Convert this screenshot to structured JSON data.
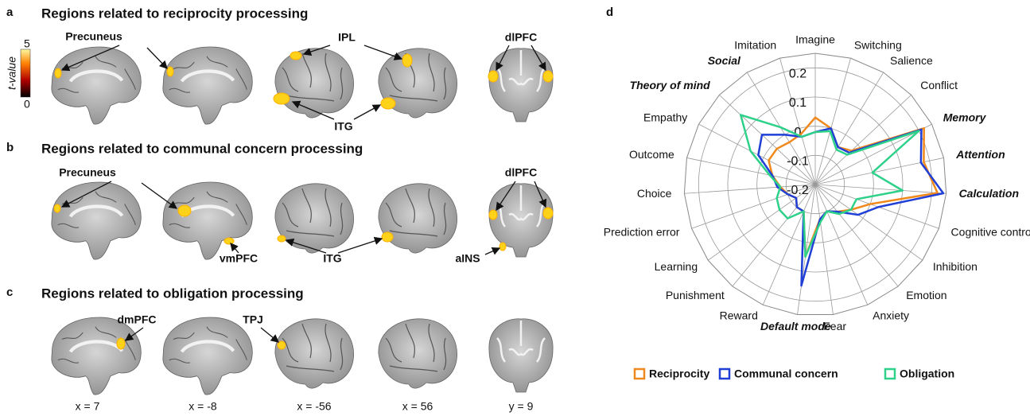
{
  "panels": [
    {
      "letter": "a",
      "title": "Regions related to reciprocity processing",
      "color": "#f0891c",
      "labels": [
        "Precuneus",
        "IPL",
        "dlPFC",
        "ITG"
      ]
    },
    {
      "letter": "b",
      "title": "Regions related to communal concern processing",
      "color": "#1f4fe0",
      "labels": [
        "Precuneus",
        "dlPFC",
        "vmPFC",
        "ITG",
        "aINS"
      ]
    },
    {
      "letter": "c",
      "title": "Regions related to obligation processing",
      "color": "#12963c",
      "labels": [
        "dmPFC",
        "TPJ"
      ]
    }
  ],
  "colorbar": {
    "label": "t-value",
    "ticks": [
      5,
      0
    ]
  },
  "slice_labels": [
    "x = 7",
    "x = -8",
    "x = -56",
    "x = 56",
    "y = 9"
  ],
  "chart_data": {
    "type": "radar",
    "letter": "d",
    "categories": [
      "Imagine",
      "Switching",
      "Salience",
      "Conflict",
      "Memory",
      "Attention",
      "Calculation",
      "Cognitive control",
      "Inhibition",
      "Emotion",
      "Anxiety",
      "Fear",
      "Default mode",
      "Reward",
      "Punishment",
      "Learning",
      "Prediction error",
      "Choice",
      "Outcome",
      "Empathy",
      "Theory of mind",
      "Social",
      "Imitation"
    ],
    "emphasis": [
      false,
      false,
      false,
      false,
      true,
      true,
      true,
      false,
      false,
      false,
      false,
      false,
      true,
      false,
      false,
      false,
      false,
      false,
      false,
      false,
      true,
      true,
      false
    ],
    "rlim": [
      -0.2,
      0.25
    ],
    "rticks": [
      -0.2,
      -0.1,
      0,
      0.1,
      0.2
    ],
    "series": [
      {
        "name": "Reciprocity",
        "color": "#f0891c",
        "values": [
          0.03,
          0.0,
          -0.05,
          -0.03,
          0.22,
          0.18,
          0.22,
          0.0,
          -0.05,
          -0.08,
          -0.1,
          -0.08,
          0.05,
          -0.1,
          -0.1,
          -0.12,
          -0.1,
          -0.08,
          -0.05,
          -0.02,
          -0.02,
          -0.03,
          -0.02
        ]
      },
      {
        "name": "Communal concern",
        "color": "#1f3fd6",
        "values": [
          -0.02,
          0.0,
          -0.05,
          -0.04,
          0.21,
          0.17,
          0.24,
          0.03,
          -0.02,
          -0.08,
          -0.1,
          -0.08,
          0.15,
          -0.1,
          -0.1,
          -0.12,
          -0.1,
          -0.07,
          -0.05,
          0.02,
          0.05,
          0.0,
          -0.03
        ]
      },
      {
        "name": "Obligation",
        "color": "#2ed18a",
        "values": [
          -0.02,
          -0.01,
          -0.06,
          -0.05,
          0.2,
          0.0,
          0.1,
          -0.05,
          -0.05,
          -0.07,
          -0.1,
          -0.07,
          0.05,
          -0.1,
          -0.05,
          -0.05,
          -0.06,
          -0.08,
          -0.04,
          0.05,
          0.15,
          0.03,
          -0.03
        ]
      }
    ]
  }
}
